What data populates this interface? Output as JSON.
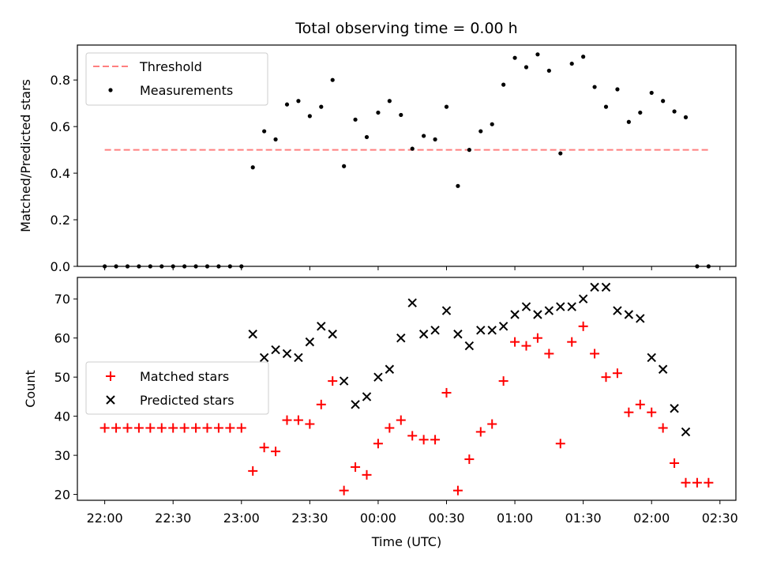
{
  "title": "Total observing time = 0.00 h",
  "colors": {
    "threshold": "#ff7f7f",
    "measurements": "#000000",
    "matched": "#ff0000",
    "predicted": "#000000"
  },
  "chart_data": [
    {
      "type": "scatter",
      "ylabel": "Matched/Predicted stars",
      "ylim": [
        0,
        0.95
      ],
      "yticks": [
        "0.0",
        "0.2",
        "0.4",
        "0.6",
        "0.8"
      ],
      "xlim": [
        "21:48",
        "02:37"
      ],
      "legend_placement": "top-left",
      "threshold": {
        "name": "Threshold",
        "value": 0.5,
        "x_start": "22:00",
        "x_end": "02:25"
      },
      "series": [
        {
          "name": "Measurements",
          "x": [
            "22:00",
            "22:05",
            "22:10",
            "22:15",
            "22:20",
            "22:25",
            "22:30",
            "22:35",
            "22:40",
            "22:45",
            "22:50",
            "22:55",
            "23:00",
            "23:05",
            "23:10",
            "23:15",
            "23:20",
            "23:25",
            "23:30",
            "23:35",
            "23:40",
            "23:45",
            "23:50",
            "23:55",
            "00:00",
            "00:05",
            "00:10",
            "00:15",
            "00:20",
            "00:25",
            "00:30",
            "00:35",
            "00:40",
            "00:45",
            "00:50",
            "00:55",
            "01:00",
            "01:05",
            "01:10",
            "01:15",
            "01:20",
            "01:25",
            "01:30",
            "01:35",
            "01:40",
            "01:45",
            "01:50",
            "01:55",
            "02:00",
            "02:05",
            "02:10",
            "02:15",
            "02:20",
            "02:25"
          ],
          "y": [
            0,
            0,
            0,
            0,
            0,
            0,
            0,
            0,
            0,
            0,
            0,
            0,
            0,
            0.425,
            0.58,
            0.545,
            0.695,
            0.71,
            0.645,
            0.685,
            0.8,
            0.43,
            0.63,
            0.555,
            0.66,
            0.71,
            0.65,
            0.505,
            0.56,
            0.545,
            0.685,
            0.345,
            0.5,
            0.58,
            0.61,
            0.78,
            0.895,
            0.855,
            0.91,
            0.84,
            0.485,
            0.87,
            0.9,
            0.77,
            0.685,
            0.76,
            0.62,
            0.66,
            0.745,
            0.71,
            0.665,
            0.64,
            0,
            0
          ]
        }
      ]
    },
    {
      "type": "scatter",
      "ylabel": "Count",
      "xlabel": "Time (UTC)",
      "ylim": [
        18.5,
        75.5
      ],
      "yticks": [
        "20",
        "30",
        "40",
        "50",
        "60",
        "70"
      ],
      "xticks": [
        "22:00",
        "22:30",
        "23:00",
        "23:30",
        "00:00",
        "00:30",
        "01:00",
        "01:30",
        "02:00",
        "02:30"
      ],
      "xlim": [
        "21:48",
        "02:37"
      ],
      "legend_placement": "center-left",
      "series": [
        {
          "name": "Matched stars",
          "x": [
            "22:00",
            "22:05",
            "22:10",
            "22:15",
            "22:20",
            "22:25",
            "22:30",
            "22:35",
            "22:40",
            "22:45",
            "22:50",
            "22:55",
            "23:00",
            "23:05",
            "23:10",
            "23:15",
            "23:20",
            "23:25",
            "23:30",
            "23:35",
            "23:40",
            "23:45",
            "23:50",
            "23:55",
            "00:00",
            "00:05",
            "00:10",
            "00:15",
            "00:20",
            "00:25",
            "00:30",
            "00:35",
            "00:40",
            "00:45",
            "00:50",
            "00:55",
            "01:00",
            "01:05",
            "01:10",
            "01:15",
            "01:20",
            "01:25",
            "01:30",
            "01:35",
            "01:40",
            "01:45",
            "01:50",
            "01:55",
            "02:00",
            "02:05",
            "02:10",
            "02:15",
            "02:20",
            "02:25"
          ],
          "y": [
            37,
            37,
            37,
            37,
            37,
            37,
            37,
            37,
            37,
            37,
            37,
            37,
            37,
            26,
            32,
            31,
            39,
            39,
            38,
            43,
            49,
            21,
            27,
            25,
            33,
            37,
            39,
            35,
            34,
            34,
            46,
            21,
            29,
            36,
            38,
            49,
            59,
            58,
            60,
            56,
            33,
            59,
            63,
            56,
            50,
            51,
            41,
            43,
            41,
            37,
            28,
            23,
            23,
            23
          ]
        },
        {
          "name": "Predicted stars",
          "x": [
            "23:05",
            "23:10",
            "23:15",
            "23:20",
            "23:25",
            "23:30",
            "23:35",
            "23:40",
            "23:45",
            "23:50",
            "23:55",
            "00:00",
            "00:05",
            "00:10",
            "00:15",
            "00:20",
            "00:25",
            "00:30",
            "00:35",
            "00:40",
            "00:45",
            "00:50",
            "00:55",
            "01:00",
            "01:05",
            "01:10",
            "01:15",
            "01:20",
            "01:25",
            "01:30",
            "01:35",
            "01:40",
            "01:45",
            "01:50",
            "01:55",
            "02:00",
            "02:05",
            "02:10",
            "02:15"
          ],
          "y": [
            61,
            55,
            57,
            56,
            55,
            59,
            63,
            61,
            49,
            43,
            45,
            50,
            52,
            60,
            69,
            61,
            62,
            67,
            61,
            58,
            62,
            62,
            63,
            66,
            68,
            66,
            67,
            68,
            68,
            70,
            73,
            73,
            67,
            66,
            65,
            55,
            52,
            42,
            36
          ]
        }
      ]
    }
  ]
}
